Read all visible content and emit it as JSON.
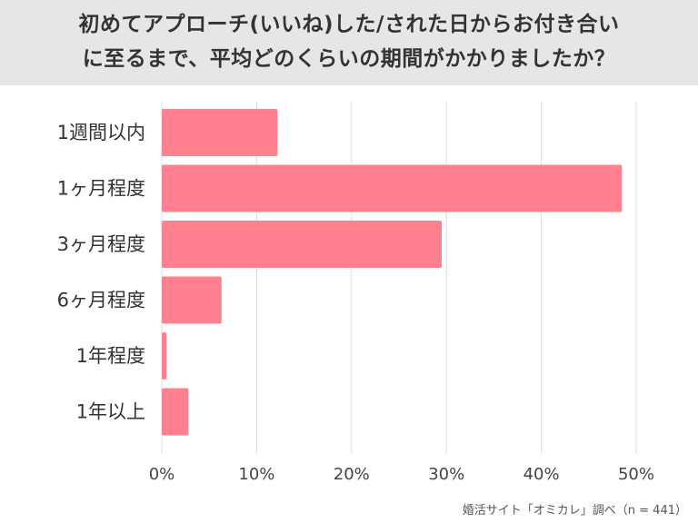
{
  "title": {
    "line1": "初めてアプローチ(いいね)した/された日からお付き合い",
    "line2": "に至るまで、平均どのくらいの期間がかかりましたか？"
  },
  "colors": {
    "bar": "#ff808e",
    "grid": "#dddddd",
    "title_background": "#e6e6e6"
  },
  "chart_data": {
    "type": "bar",
    "orientation": "horizontal",
    "categories": [
      "1週間以内",
      "1ヶ月程度",
      "3ヶ月程度",
      "6ヶ月程度",
      "1年程度",
      "1年以上"
    ],
    "values": [
      12.2,
      48.5,
      29.5,
      6.3,
      0.5,
      2.8
    ],
    "xlim": [
      0,
      50
    ],
    "xticks": [
      "0%",
      "10%",
      "20%",
      "30%",
      "40%",
      "50%"
    ],
    "grid": true
  },
  "footer": {
    "source": "婚活サイト「オミカレ」調べ（n = 441）"
  }
}
